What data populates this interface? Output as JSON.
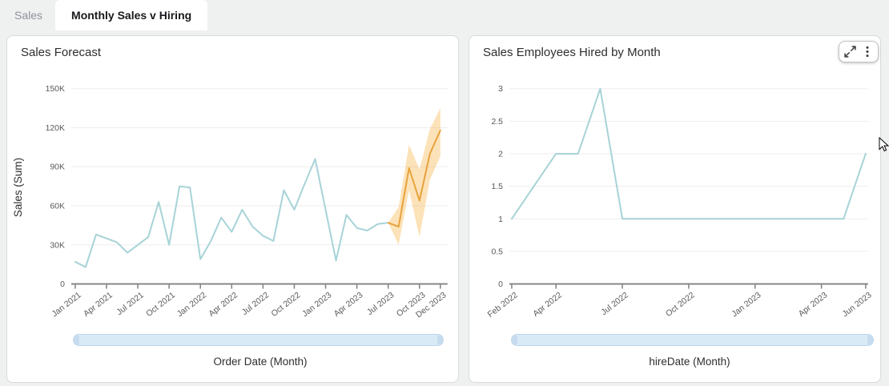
{
  "tabs": [
    {
      "label": "Sales",
      "active": false
    },
    {
      "label": "Monthly Sales v Hiring",
      "active": true
    }
  ],
  "controls": {
    "maximize_icon": "expand-arrows",
    "menu_icon": "kebab-vertical-dots"
  },
  "colors": {
    "page_background": "#eff0f0",
    "card_background": "#ffffff",
    "actual_line": "#a7d3d7",
    "forecast_line": "#e8a23c",
    "forecast_band": "rgba(246,171,53,0.35)",
    "scrollbar_fill": "#d9eaf7",
    "gridline": "#ededed",
    "axis_line": "#808080"
  },
  "chart_data": [
    {
      "type": "line",
      "title": "Sales Forecast",
      "xlabel": "Order Date (Month)",
      "ylabel": "Sales (Sum)",
      "ylim": [
        0,
        150000
      ],
      "x_unit": "month index, 0 = Jan 2021",
      "grid": "horizontal only",
      "legend": "none",
      "y_ticks": [
        {
          "v": 0,
          "label": "0"
        },
        {
          "v": 30000,
          "label": "30K"
        },
        {
          "v": 60000,
          "label": "60K"
        },
        {
          "v": 90000,
          "label": "90K"
        },
        {
          "v": 120000,
          "label": "120K"
        },
        {
          "v": 150000,
          "label": "150K"
        }
      ],
      "x_ticks": [
        {
          "m": 0,
          "label": "Jan 2021"
        },
        {
          "m": 3,
          "label": "Apr 2021"
        },
        {
          "m": 6,
          "label": "Jul 2021"
        },
        {
          "m": 9,
          "label": "Oct 2021"
        },
        {
          "m": 12,
          "label": "Jan 2022"
        },
        {
          "m": 15,
          "label": "Apr 2022"
        },
        {
          "m": 18,
          "label": "Jul 2022"
        },
        {
          "m": 21,
          "label": "Oct 2022"
        },
        {
          "m": 24,
          "label": "Jan 2023"
        },
        {
          "m": 27,
          "label": "Apr 2023"
        },
        {
          "m": 30,
          "label": "Jul 2023"
        },
        {
          "m": 33,
          "label": "Oct 2023"
        },
        {
          "m": 35,
          "label": "Dec 2023"
        }
      ],
      "series": [
        {
          "name": "actual",
          "color": "#a7d3d7",
          "points": [
            [
              0,
              17000
            ],
            [
              1,
              13000
            ],
            [
              2,
              38000
            ],
            [
              3,
              35000
            ],
            [
              4,
              32000
            ],
            [
              5,
              24000
            ],
            [
              6,
              30000
            ],
            [
              7,
              36000
            ],
            [
              8,
              63000
            ],
            [
              9,
              30000
            ],
            [
              10,
              75000
            ],
            [
              11,
              74000
            ],
            [
              12,
              19000
            ],
            [
              13,
              33000
            ],
            [
              14,
              51000
            ],
            [
              15,
              40000
            ],
            [
              16,
              57000
            ],
            [
              17,
              44000
            ],
            [
              18,
              37000
            ],
            [
              19,
              33000
            ],
            [
              20,
              72000
            ],
            [
              21,
              57000
            ],
            [
              22,
              77000
            ],
            [
              23,
              96000
            ],
            [
              24,
              57000
            ],
            [
              25,
              18000
            ],
            [
              26,
              53000
            ],
            [
              27,
              43000
            ],
            [
              28,
              41000
            ],
            [
              29,
              46000
            ],
            [
              30,
              47000
            ]
          ]
        },
        {
          "name": "forecast",
          "color": "#e8a23c",
          "points": [
            [
              30,
              47000
            ],
            [
              31,
              44000
            ],
            [
              32,
              89000
            ],
            [
              33,
              64000
            ],
            [
              34,
              100000
            ],
            [
              35,
              118000
            ]
          ]
        }
      ],
      "forecast_band": {
        "color": "rgba(246,171,53,0.35)",
        "points_upper": [
          [
            30,
            47000
          ],
          [
            31,
            59000
          ],
          [
            32,
            107000
          ],
          [
            33,
            88000
          ],
          [
            34,
            119000
          ],
          [
            35,
            135000
          ]
        ],
        "points_lower": [
          [
            30,
            47000
          ],
          [
            31,
            30000
          ],
          [
            32,
            72000
          ],
          [
            33,
            36000
          ],
          [
            34,
            80000
          ],
          [
            35,
            98000
          ]
        ]
      }
    },
    {
      "type": "line",
      "title": "Sales Employees Hired by Month",
      "xlabel": "hireDate (Month)",
      "ylabel": "",
      "ylim": [
        0,
        3
      ],
      "x_unit": "month index, 0 = Feb 2022",
      "grid": "horizontal only",
      "legend": "none",
      "y_ticks": [
        {
          "v": 0,
          "label": "0"
        },
        {
          "v": 0.5,
          "label": "0.5"
        },
        {
          "v": 1,
          "label": "1"
        },
        {
          "v": 1.5,
          "label": "1.5"
        },
        {
          "v": 2,
          "label": "2"
        },
        {
          "v": 2.5,
          "label": "2.5"
        },
        {
          "v": 3,
          "label": "3"
        }
      ],
      "x_ticks": [
        {
          "m": 0,
          "label": "Feb 2022"
        },
        {
          "m": 2,
          "label": "Apr 2022"
        },
        {
          "m": 5,
          "label": "Jul 2022"
        },
        {
          "m": 8,
          "label": "Oct 2022"
        },
        {
          "m": 11,
          "label": "Jan 2023"
        },
        {
          "m": 14,
          "label": "Apr 2023"
        },
        {
          "m": 16,
          "label": "Jun 2023"
        }
      ],
      "series": [
        {
          "name": "hires",
          "color": "#a7d3d7",
          "points": [
            [
              0,
              1
            ],
            [
              2,
              2
            ],
            [
              3,
              2
            ],
            [
              4,
              3
            ],
            [
              5,
              1
            ],
            [
              15,
              1
            ],
            [
              16,
              2
            ]
          ]
        }
      ]
    }
  ]
}
